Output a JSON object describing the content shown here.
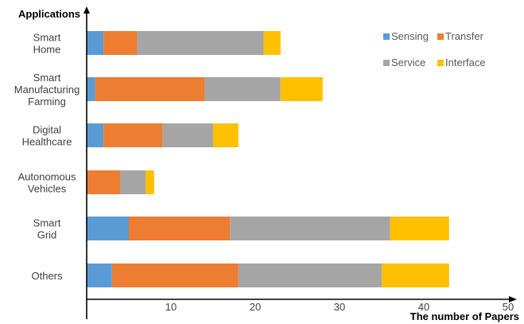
{
  "chart_data": {
    "type": "bar",
    "orientation": "horizontal",
    "stacked": true,
    "title": "",
    "xlabel": "The number of Papers",
    "ylabel": "Applications",
    "xlim": [
      0,
      50
    ],
    "xticks": [
      10,
      20,
      30,
      40,
      50
    ],
    "grid": false,
    "legend_position": "top-right",
    "categories": [
      [
        "Smart",
        "Home"
      ],
      [
        "Smart",
        "Manufacturing",
        "Farming"
      ],
      [
        "Digital",
        "Healthcare"
      ],
      [
        "Autonomous",
        "Vehicles"
      ],
      [
        "Smart",
        "Grid"
      ],
      [
        "Others"
      ]
    ],
    "series": [
      {
        "name": "Sensing",
        "color": "#5B9BD5",
        "values": [
          2,
          1,
          2,
          0,
          5,
          3
        ]
      },
      {
        "name": "Transfer",
        "color": "#ED7D31",
        "values": [
          4,
          13,
          7,
          4,
          12,
          15
        ]
      },
      {
        "name": "Service",
        "color": "#A5A5A5",
        "values": [
          15,
          9,
          6,
          3,
          19,
          17
        ]
      },
      {
        "name": "Interface",
        "color": "#FFC000",
        "values": [
          2,
          5,
          3,
          1,
          7,
          8
        ]
      }
    ]
  }
}
